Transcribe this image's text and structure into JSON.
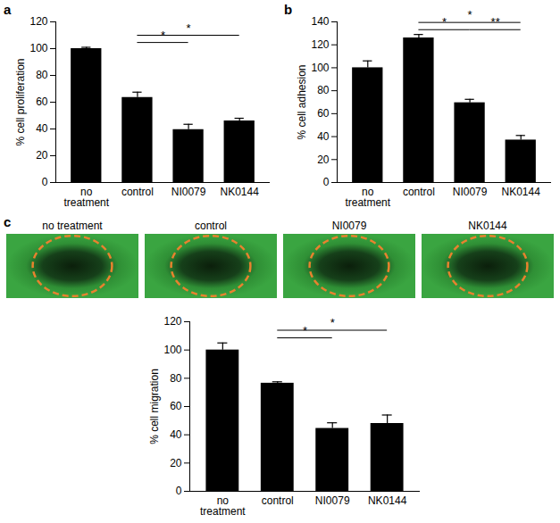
{
  "chart_data": [
    {
      "type": "bar",
      "title": "a",
      "y_label": "% cell proliferation",
      "color": "#000000",
      "categories": [
        "no treatment",
        "control",
        "NI0079",
        "NK0144"
      ],
      "values": [
        100,
        63.5,
        39.5,
        46
      ],
      "errors": [
        1,
        4,
        4,
        2
      ],
      "ylim": [
        0,
        120
      ],
      "yticks": [
        0,
        20,
        40,
        60,
        80,
        100,
        120
      ],
      "annotations": [
        {
          "from": "control",
          "to": "NI0079",
          "label": "*"
        },
        {
          "from": "control",
          "to": "NK0144",
          "label": "*"
        }
      ]
    },
    {
      "type": "bar",
      "title": "b",
      "y_label": "% cell adhesion",
      "color": "#000000",
      "categories": [
        "no treatment",
        "control",
        "NI0079",
        "NK0144"
      ],
      "values": [
        100,
        126,
        69.5,
        37
      ],
      "errors": [
        6,
        3,
        3,
        4
      ],
      "ylim": [
        0,
        140
      ],
      "yticks": [
        0,
        20,
        40,
        60,
        80,
        100,
        120,
        140
      ],
      "annotations": [
        {
          "from": "control",
          "to": "NI0079",
          "label": "*"
        },
        {
          "from": "NI0079",
          "to": "NK0144",
          "label": "**"
        },
        {
          "from": "control",
          "to": "NK0144",
          "label": "*"
        }
      ]
    },
    {
      "type": "bar",
      "title": "c",
      "y_label": "% cell migration",
      "color": "#000000",
      "images": [
        "no treatment",
        "control",
        "NI0079",
        "NK0144"
      ],
      "categories": [
        "no treatment",
        "control",
        "NI0079",
        "NK0144"
      ],
      "values": [
        100,
        76.5,
        44.5,
        48
      ],
      "errors": [
        5,
        1,
        4,
        6
      ],
      "ylim": [
        0,
        120
      ],
      "yticks": [
        0,
        20,
        40,
        60,
        80,
        100,
        120
      ],
      "annotations": [
        {
          "from": "control",
          "to": "NI0079",
          "label": "*"
        },
        {
          "from": "control",
          "to": "NK0144",
          "label": "*"
        }
      ]
    }
  ]
}
